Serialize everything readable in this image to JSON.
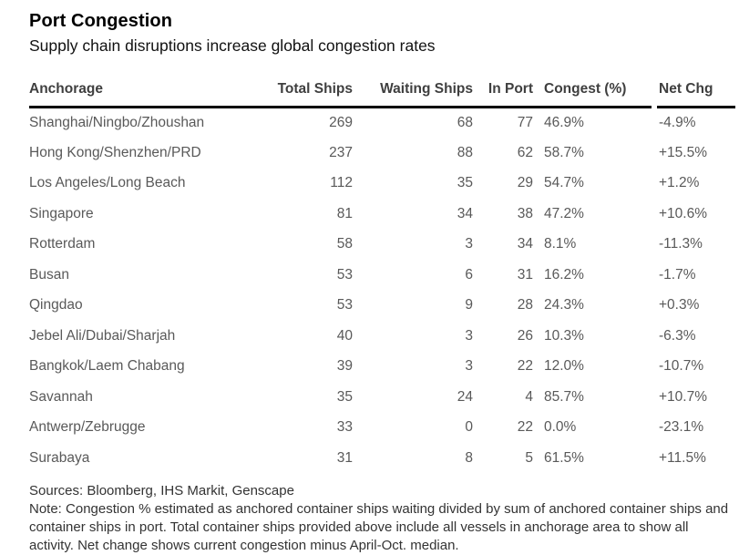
{
  "header": {
    "title": "Port Congestion",
    "subtitle": "Supply chain disruptions increase global congestion rates"
  },
  "chart_data": {
    "type": "table",
    "title": "Port Congestion",
    "subtitle": "Supply chain disruptions increase global congestion rates",
    "columns": [
      "Anchorage",
      "Total Ships",
      "Waiting Ships",
      "In Port",
      "Congest (%)",
      "Net Chg"
    ],
    "rows": [
      {
        "anchorage": "Shanghai/Ningbo/Zhoushan",
        "total_ships": "269",
        "waiting_ships": "68",
        "in_port": "77",
        "congest_pct": "46.9%",
        "net_chg": "-4.9%"
      },
      {
        "anchorage": "Hong Kong/Shenzhen/PRD",
        "total_ships": "237",
        "waiting_ships": "88",
        "in_port": "62",
        "congest_pct": "58.7%",
        "net_chg": "+15.5%"
      },
      {
        "anchorage": "Los Angeles/Long Beach",
        "total_ships": "112",
        "waiting_ships": "35",
        "in_port": "29",
        "congest_pct": "54.7%",
        "net_chg": "+1.2%"
      },
      {
        "anchorage": "Singapore",
        "total_ships": "81",
        "waiting_ships": "34",
        "in_port": "38",
        "congest_pct": "47.2%",
        "net_chg": "+10.6%"
      },
      {
        "anchorage": "Rotterdam",
        "total_ships": "58",
        "waiting_ships": "3",
        "in_port": "34",
        "congest_pct": "8.1%",
        "net_chg": "-11.3%"
      },
      {
        "anchorage": "Busan",
        "total_ships": "53",
        "waiting_ships": "6",
        "in_port": "31",
        "congest_pct": "16.2%",
        "net_chg": "-1.7%"
      },
      {
        "anchorage": "Qingdao",
        "total_ships": "53",
        "waiting_ships": "9",
        "in_port": "28",
        "congest_pct": "24.3%",
        "net_chg": "+0.3%"
      },
      {
        "anchorage": "Jebel Ali/Dubai/Sharjah",
        "total_ships": "40",
        "waiting_ships": "3",
        "in_port": "26",
        "congest_pct": "10.3%",
        "net_chg": "-6.3%"
      },
      {
        "anchorage": "Bangkok/Laem Chabang",
        "total_ships": "39",
        "waiting_ships": "3",
        "in_port": "22",
        "congest_pct": "12.0%",
        "net_chg": "-10.7%"
      },
      {
        "anchorage": "Savannah",
        "total_ships": "35",
        "waiting_ships": "24",
        "in_port": "4",
        "congest_pct": "85.7%",
        "net_chg": "+10.7%"
      },
      {
        "anchorage": "Antwerp/Zebrugge",
        "total_ships": "33",
        "waiting_ships": "0",
        "in_port": "22",
        "congest_pct": "0.0%",
        "net_chg": "-23.1%"
      },
      {
        "anchorage": "Surabaya",
        "total_ships": "31",
        "waiting_ships": "8",
        "in_port": "5",
        "congest_pct": "61.5%",
        "net_chg": "+11.5%"
      }
    ],
    "layout": {
      "column_alignments": [
        "left",
        "right",
        "right",
        "right",
        "left",
        "left"
      ],
      "header_rule_gap_before_last_column": true
    }
  },
  "footer": {
    "sources": "Sources: Bloomberg, IHS Markit, Genscape",
    "note": "Note: Congestion % estimated as anchored container ships waiting divided by sum of anchored container ships and container ships in port. Total container ships provided above include all vessels in anchorage area to show all activity. Net change shows current congestion minus April-Oct. median."
  },
  "colors": {
    "background": "#ffffff",
    "title_text": "#000000",
    "header_text": "#3f3f3f",
    "cell_text": "#595959",
    "header_rule": "#000000",
    "footer_text": "#333333"
  }
}
